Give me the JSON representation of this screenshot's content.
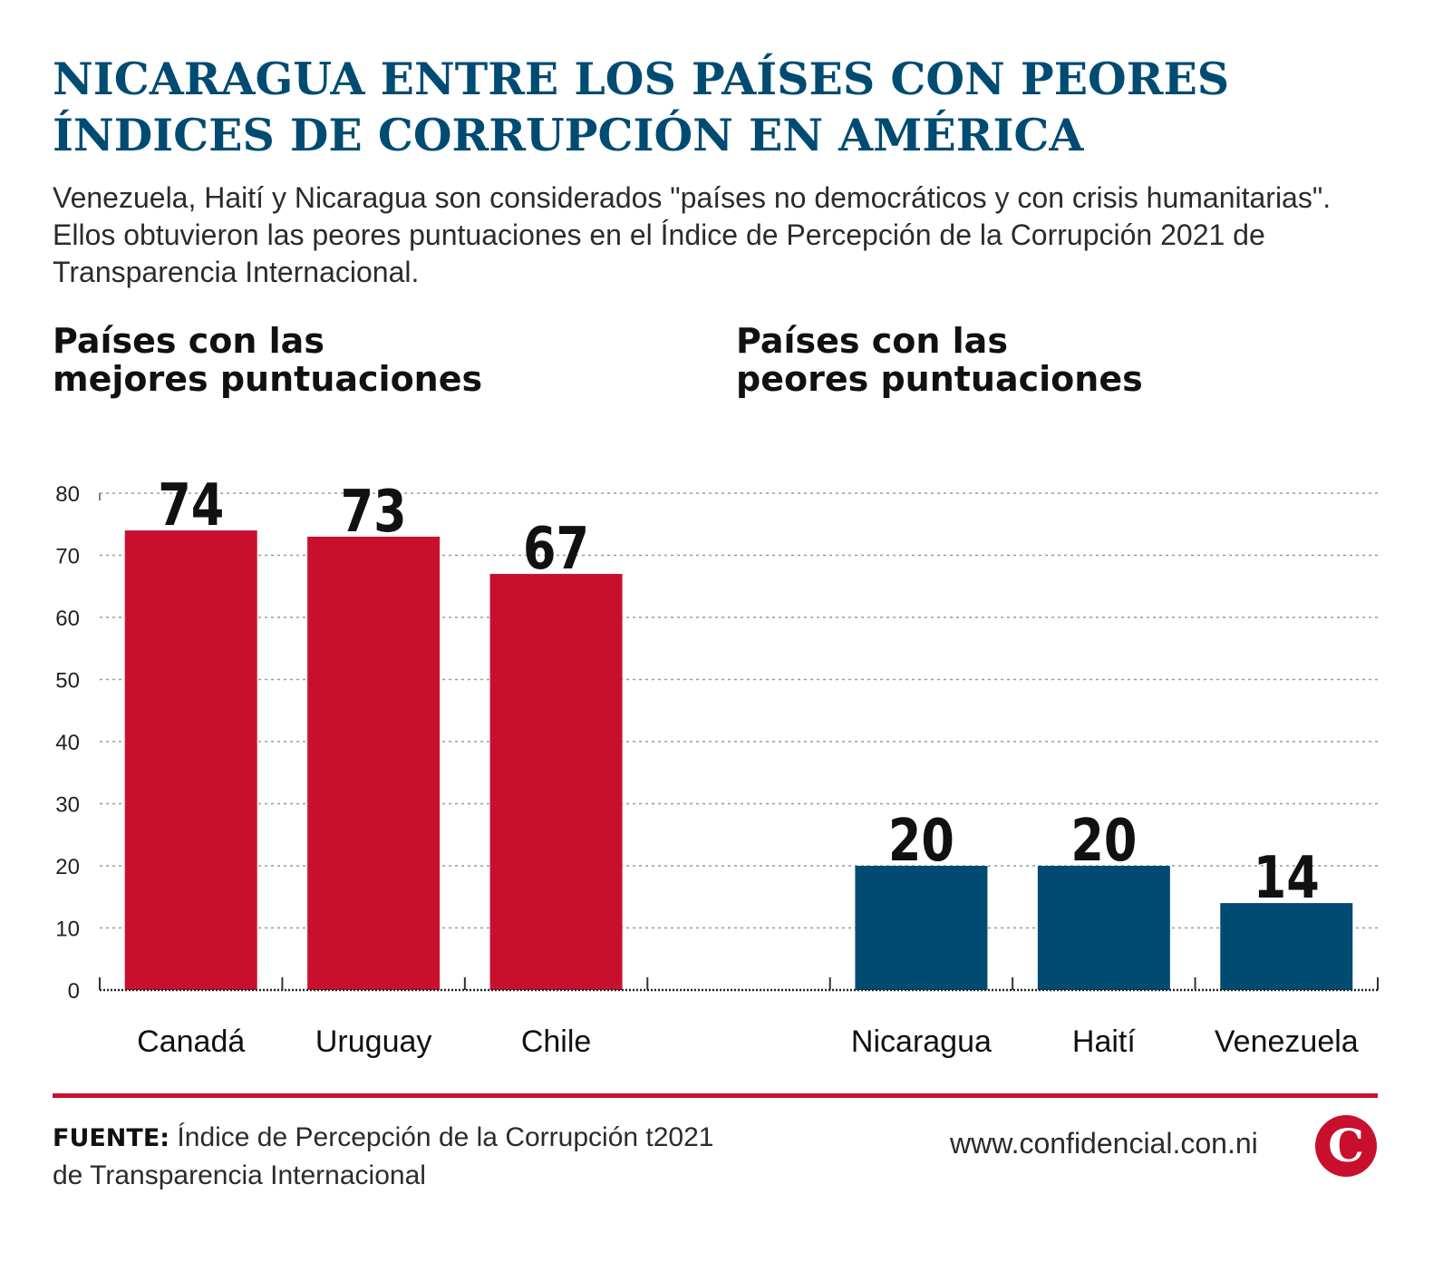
{
  "header": {
    "title_line1": "NICARAGUA ENTRE LOS PAÍSES CON PEORES",
    "title_line2": "ÍNDICES DE CORRUPCIÓN EN AMÉRICA",
    "subtitle": "Venezuela, Haití y Nicaragua son considerados \"países no democráticos y con crisis humanitarias\". Ellos obtuvieron las peores puntuaciones en el Índice de Percepción de la Corrupción 2021 de Transparencia Internacional."
  },
  "groups": {
    "best_title": "Países con las\nmejores puntuaciones",
    "worst_title": "Países con las\npeores puntuaciones"
  },
  "chart_data": {
    "type": "bar",
    "categories": [
      "Canadá",
      "Uruguay",
      "Chile",
      "",
      "Nicaragua",
      "Haití",
      "Venezuela"
    ],
    "values": [
      74,
      73,
      67,
      null,
      20,
      20,
      14
    ],
    "value_labels": [
      "74",
      "73",
      "67",
      "",
      "20",
      "20",
      "14"
    ],
    "bar_colors": [
      "#c8102e",
      "#c8102e",
      "#c8102e",
      null,
      "#004b72",
      "#004b72",
      "#004b72"
    ],
    "yticks": [
      0,
      10,
      20,
      30,
      40,
      50,
      60,
      70,
      80
    ],
    "ylim": [
      0,
      80
    ],
    "grid": true,
    "title": "",
    "xlabel": "",
    "ylabel": ""
  },
  "footer": {
    "source_label": "FUENTE:",
    "source_text": "Índice de Percepción de la Corrupción t2021 de Transparencia Internacional",
    "website": "www.confidencial.con.ni",
    "logo_letter": "C"
  },
  "colors": {
    "title": "#004b72",
    "best_bars": "#c8102e",
    "worst_bars": "#004b72",
    "divider": "#c8102e"
  }
}
